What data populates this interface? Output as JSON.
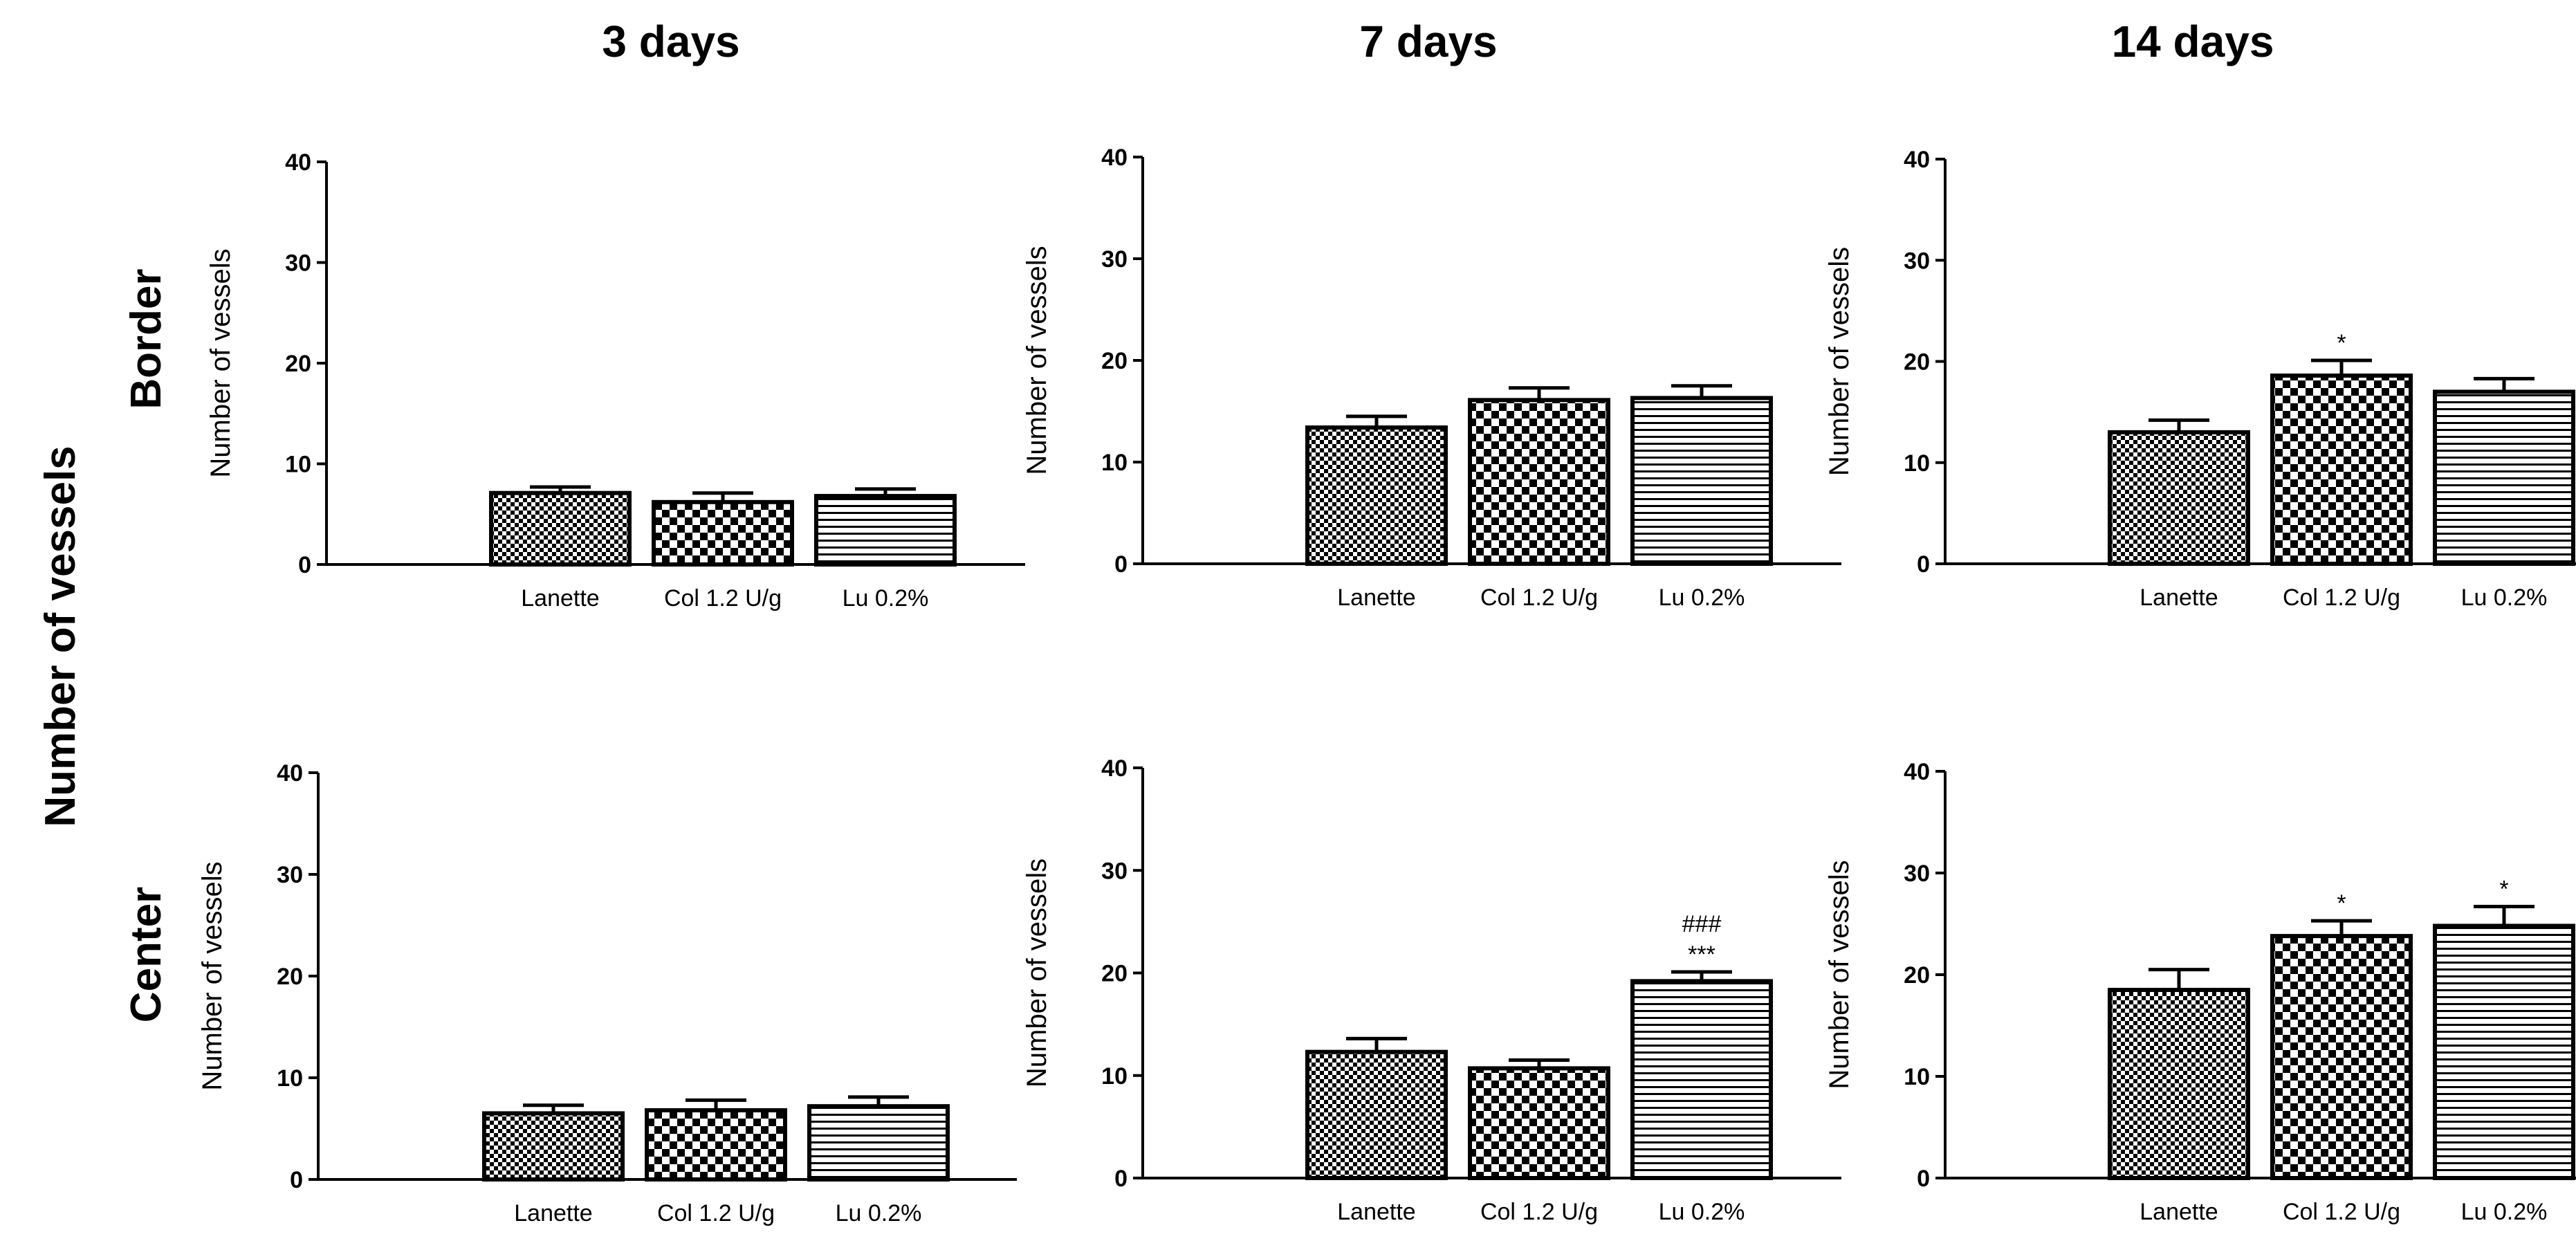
{
  "figure": {
    "y_label": "Number of vessels",
    "columns": [
      "3 days",
      "7 days",
      "14 days"
    ],
    "rows": [
      "Border",
      "Center"
    ]
  },
  "chart_data": [
    {
      "type": "bar",
      "row": "Border",
      "column": "3 days",
      "categories": [
        "Lanette",
        "Col 1.2 U/g",
        "Lu 0.2%"
      ],
      "values": [
        7.1,
        6.2,
        6.8
      ],
      "errors": [
        0.6,
        0.9,
        0.7
      ],
      "annotations": [
        "",
        "",
        ""
      ],
      "ylabel": "Number of vessels",
      "ylim": [
        0,
        40
      ],
      "yticks": [
        0,
        10,
        20,
        30,
        40
      ]
    },
    {
      "type": "bar",
      "row": "Border",
      "column": "7 days",
      "categories": [
        "Lanette",
        "Col 1.2 U/g",
        "Lu 0.2%"
      ],
      "values": [
        13.4,
        16.1,
        16.3
      ],
      "errors": [
        1.1,
        1.2,
        1.2
      ],
      "annotations": [
        "",
        "",
        ""
      ],
      "ylabel": "Number of vessels",
      "ylim": [
        0,
        40
      ],
      "yticks": [
        0,
        10,
        20,
        30,
        40
      ]
    },
    {
      "type": "bar",
      "row": "Border",
      "column": "14 days",
      "categories": [
        "Lanette",
        "Col 1.2 U/g",
        "Lu 0.2%"
      ],
      "values": [
        13.0,
        18.6,
        17.0
      ],
      "errors": [
        1.2,
        1.5,
        1.3
      ],
      "annotations": [
        "",
        "*",
        ""
      ],
      "ylabel": "Number of vessels",
      "ylim": [
        0,
        40
      ],
      "yticks": [
        0,
        10,
        20,
        30,
        40
      ]
    },
    {
      "type": "bar",
      "row": "Center",
      "column": "3 days",
      "categories": [
        "Lanette",
        "Col 1.2 U/g",
        "Lu 0.2%"
      ],
      "values": [
        6.5,
        6.8,
        7.2
      ],
      "errors": [
        0.8,
        1.0,
        0.9
      ],
      "annotations": [
        "",
        "",
        ""
      ],
      "ylabel": "Number of vessels",
      "ylim": [
        0,
        40
      ],
      "yticks": [
        0,
        10,
        20,
        30,
        40
      ]
    },
    {
      "type": "bar",
      "row": "Center",
      "column": "7 days",
      "categories": [
        "Lanette",
        "Col 1.2 U/g",
        "Lu 0.2%"
      ],
      "values": [
        12.3,
        10.7,
        19.2
      ],
      "errors": [
        1.3,
        0.8,
        0.9
      ],
      "annotations": [
        "",
        "",
        "***\n###"
      ],
      "ylabel": "Number of vessels",
      "ylim": [
        0,
        40
      ],
      "yticks": [
        0,
        10,
        20,
        30,
        40
      ]
    },
    {
      "type": "bar",
      "row": "Center",
      "column": "14 days",
      "categories": [
        "Lanette",
        "Col 1.2 U/g",
        "Lu 0.2%"
      ],
      "values": [
        18.5,
        23.8,
        24.8
      ],
      "errors": [
        2.0,
        1.5,
        1.9
      ],
      "annotations": [
        "",
        "*",
        "*"
      ],
      "ylabel": "Number of vessels",
      "ylim": [
        0,
        40
      ],
      "yticks": [
        0,
        10,
        20,
        30,
        40
      ]
    }
  ],
  "colors": {
    "ink": "#000000",
    "background": "#ffffff"
  }
}
